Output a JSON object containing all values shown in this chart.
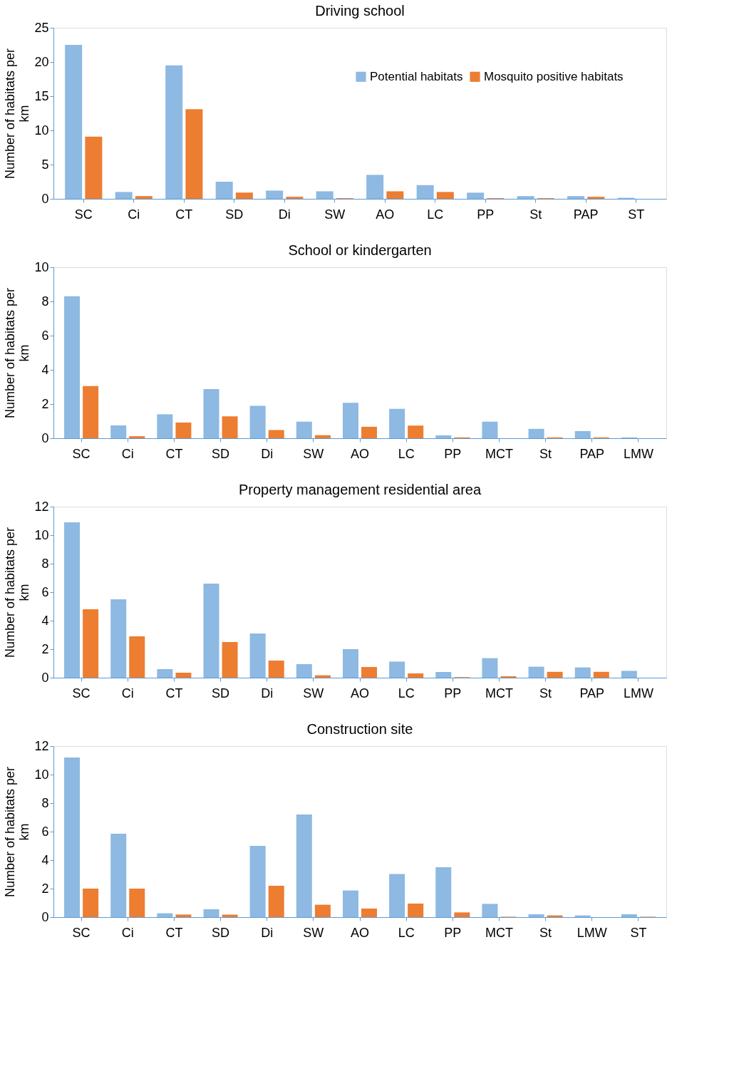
{
  "chart_data": [
    {
      "type": "bar",
      "title": "Driving school",
      "ylabel": "Number of habitats per km",
      "categories": [
        "SC",
        "Ci",
        "CT",
        "SD",
        "Di",
        "SW",
        "AO",
        "LC",
        "PP",
        "St",
        "PAP",
        "ST"
      ],
      "ylim": [
        0,
        25
      ],
      "yticks": [
        0,
        5,
        10,
        15,
        20,
        25
      ],
      "legend": "top right",
      "series": [
        {
          "name": "Potential habitats",
          "color": "#8db9e2",
          "values": [
            22.5,
            1.0,
            19.5,
            2.5,
            1.2,
            1.1,
            3.5,
            2.0,
            0.9,
            0.4,
            0.4,
            0.15
          ]
        },
        {
          "name": "Mosquito positive habitats",
          "color": "#ed7d31",
          "values": [
            9.1,
            0.4,
            13.1,
            0.9,
            0.3,
            0.1,
            1.1,
            1.0,
            0.1,
            0.1,
            0.3,
            0.0
          ]
        }
      ]
    },
    {
      "type": "bar",
      "title": "School or kindergarten",
      "ylabel": "Number of habitats per km",
      "categories": [
        "SC",
        "Ci",
        "CT",
        "SD",
        "Di",
        "SW",
        "AO",
        "LC",
        "PP",
        "MCT",
        "St",
        "PAP",
        "LMW"
      ],
      "ylim": [
        0,
        10
      ],
      "yticks": [
        0,
        2,
        4,
        6,
        8,
        10
      ],
      "series": [
        {
          "color": "#8db9e2",
          "values": [
            8.3,
            0.75,
            1.4,
            2.87,
            1.9,
            0.97,
            2.07,
            1.72,
            0.17,
            0.97,
            0.55,
            0.42,
            0.05
          ]
        },
        {
          "color": "#ed7d31",
          "values": [
            3.05,
            0.12,
            0.92,
            1.28,
            0.48,
            0.18,
            0.67,
            0.74,
            0.05,
            0.0,
            0.05,
            0.05,
            0.0
          ]
        }
      ]
    },
    {
      "type": "bar",
      "title": "Property management residential area",
      "ylabel": "Number of habitats per km",
      "categories": [
        "SC",
        "Ci",
        "CT",
        "SD",
        "Di",
        "SW",
        "AO",
        "LC",
        "PP",
        "MCT",
        "St",
        "PAP",
        "LMW"
      ],
      "ylim": [
        0,
        12
      ],
      "yticks": [
        0,
        2,
        4,
        6,
        8,
        10,
        12
      ],
      "series": [
        {
          "color": "#8db9e2",
          "values": [
            10.9,
            5.5,
            0.6,
            6.6,
            3.1,
            0.95,
            2.0,
            1.13,
            0.4,
            1.37,
            0.77,
            0.72,
            0.48
          ]
        },
        {
          "color": "#ed7d31",
          "values": [
            4.8,
            2.9,
            0.35,
            2.5,
            1.2,
            0.17,
            0.75,
            0.3,
            0.04,
            0.1,
            0.41,
            0.41,
            0.0
          ]
        }
      ]
    },
    {
      "type": "bar",
      "title": "Construction site",
      "ylabel": "Number of habitats per km",
      "categories": [
        "SC",
        "Ci",
        "CT",
        "SD",
        "Di",
        "SW",
        "AO",
        "LC",
        "PP",
        "MCT",
        "St",
        "LMW",
        "ST"
      ],
      "ylim": [
        0,
        12
      ],
      "yticks": [
        0,
        2,
        4,
        6,
        8,
        10,
        12
      ],
      "series": [
        {
          "color": "#8db9e2",
          "values": [
            11.2,
            5.85,
            0.27,
            0.55,
            5.0,
            7.2,
            1.87,
            3.03,
            3.5,
            0.93,
            0.2,
            0.12,
            0.2
          ]
        },
        {
          "color": "#ed7d31",
          "values": [
            2.0,
            2.0,
            0.18,
            0.18,
            2.2,
            0.87,
            0.6,
            0.95,
            0.33,
            0.03,
            0.12,
            0.0,
            0.03
          ]
        }
      ]
    }
  ]
}
